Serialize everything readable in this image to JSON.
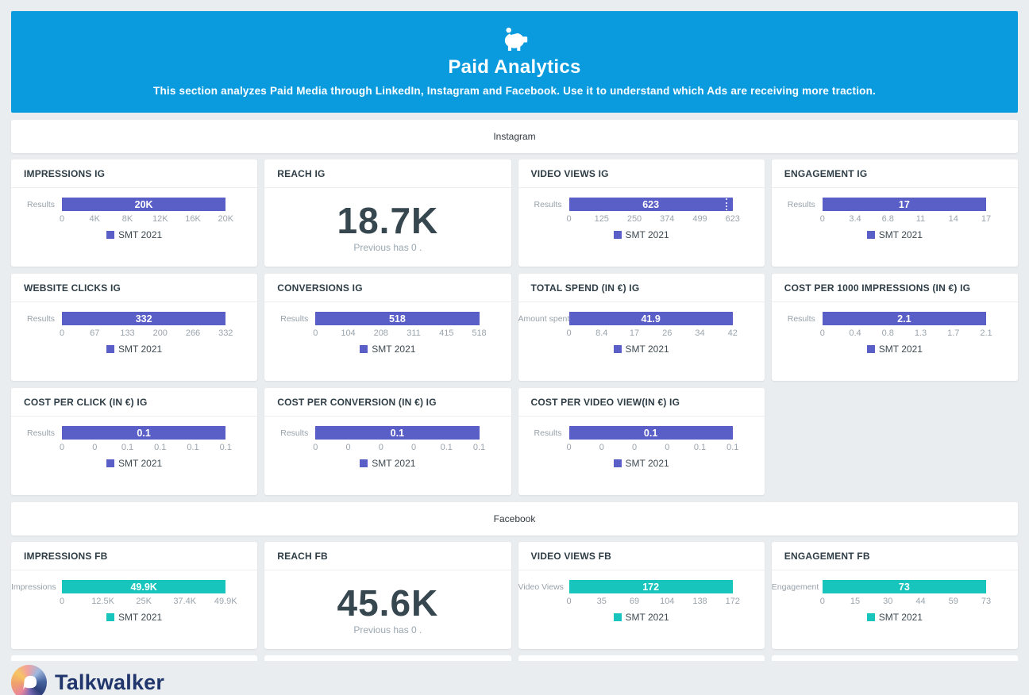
{
  "header": {
    "icon": "piggy-bank",
    "title": "Paid Analytics",
    "subtitle": "This section analyzes Paid Media through LinkedIn, Instagram and Facebook. Use it to understand which Ads are receiving more traction.",
    "bg_color": "#0a9bdf"
  },
  "footer": {
    "brand": "Talkwalker"
  },
  "colors": {
    "instagram_accent": "#5a5fc7",
    "facebook_accent": "#18c5bc"
  },
  "sections": [
    {
      "label": "Instagram",
      "accent": "#5a5fc7",
      "cards": [
        {
          "type": "bar",
          "title": "IMPRESSIONS IG",
          "ylabel": "Results",
          "value": "20K",
          "ticks": [
            "0",
            "4K",
            "8K",
            "12K",
            "16K",
            "20K"
          ],
          "legend": "SMT 2021"
        },
        {
          "type": "big",
          "title": "REACH IG",
          "value": "18.7K",
          "note": "Previous has 0 ."
        },
        {
          "type": "bar",
          "title": "VIDEO VIEWS IG",
          "ylabel": "Results",
          "value": "623",
          "ticks": [
            "0",
            "125",
            "250",
            "374",
            "499",
            "623"
          ],
          "legend": "SMT 2021",
          "marker": true
        },
        {
          "type": "bar",
          "title": "ENGAGEMENT IG",
          "ylabel": "Results",
          "value": "17",
          "ticks": [
            "0",
            "3.4",
            "6.8",
            "11",
            "14",
            "17"
          ],
          "legend": "SMT 2021"
        },
        {
          "type": "bar",
          "title": "WEBSITE CLICKS IG",
          "ylabel": "Results",
          "value": "332",
          "ticks": [
            "0",
            "67",
            "133",
            "200",
            "266",
            "332"
          ],
          "legend": "SMT 2021"
        },
        {
          "type": "bar",
          "title": "CONVERSIONS IG",
          "ylabel": "Results",
          "value": "518",
          "ticks": [
            "0",
            "104",
            "208",
            "311",
            "415",
            "518"
          ],
          "legend": "SMT 2021"
        },
        {
          "type": "bar",
          "title": "TOTAL SPEND (IN €) IG",
          "ylabel": "Amount spent",
          "value": "41.9",
          "ticks": [
            "0",
            "8.4",
            "17",
            "26",
            "34",
            "42"
          ],
          "legend": "SMT 2021"
        },
        {
          "type": "bar",
          "title": "COST PER 1000 IMPRESSIONS (IN €) IG",
          "ylabel": "Results",
          "value": "2.1",
          "ticks": [
            "0",
            "0.4",
            "0.8",
            "1.3",
            "1.7",
            "2.1"
          ],
          "legend": "SMT 2021"
        },
        {
          "type": "bar",
          "title": "COST PER CLICK (IN €) IG",
          "ylabel": "Results",
          "value": "0.1",
          "ticks": [
            "0",
            "0",
            "0.1",
            "0.1",
            "0.1",
            "0.1"
          ],
          "legend": "SMT 2021"
        },
        {
          "type": "bar",
          "title": "COST PER CONVERSION (IN €) IG",
          "ylabel": "Results",
          "value": "0.1",
          "ticks": [
            "0",
            "0",
            "0",
            "0",
            "0.1",
            "0.1"
          ],
          "legend": "SMT 2021"
        },
        {
          "type": "bar",
          "title": "COST PER VIDEO VIEW(IN €) IG",
          "ylabel": "Results",
          "value": "0.1",
          "ticks": [
            "0",
            "0",
            "0",
            "0",
            "0.1",
            "0.1"
          ],
          "legend": "SMT 2021"
        },
        {
          "type": "empty"
        }
      ]
    },
    {
      "label": "Facebook",
      "accent": "#18c5bc",
      "cards": [
        {
          "type": "bar",
          "title": "IMPRESSIONS FB",
          "ylabel": "Impressions",
          "value": "49.9K",
          "ticks": [
            "0",
            "12.5K",
            "25K",
            "37.4K",
            "49.9K"
          ],
          "legend": "SMT 2021"
        },
        {
          "type": "big",
          "title": "REACH FB",
          "value": "45.6K",
          "note": "Previous has 0 ."
        },
        {
          "type": "bar",
          "title": "VIDEO VIEWS FB",
          "ylabel": "Video Views",
          "value": "172",
          "ticks": [
            "0",
            "35",
            "69",
            "104",
            "138",
            "172"
          ],
          "legend": "SMT 2021"
        },
        {
          "type": "bar",
          "title": "ENGAGEMENT FB",
          "ylabel": "Engagement",
          "value": "73",
          "ticks": [
            "0",
            "15",
            "30",
            "44",
            "59",
            "73"
          ],
          "legend": "SMT 2021"
        }
      ]
    }
  ]
}
